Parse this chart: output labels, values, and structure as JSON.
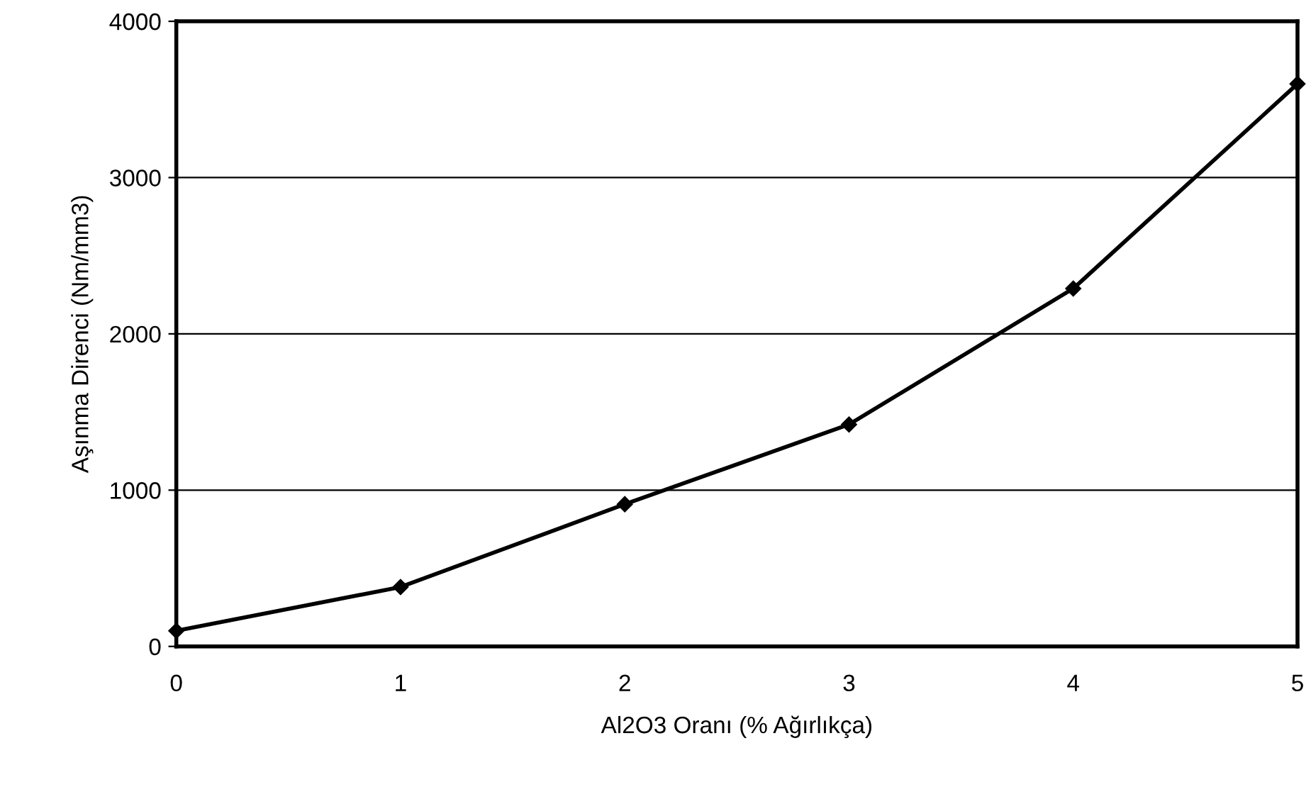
{
  "chart_data": {
    "type": "line",
    "xlabel": "Al2O3 Oranı (% Ağırlıkça)",
    "ylabel": "Aşınma Direnci (Nm/mm3)",
    "x": [
      0,
      1,
      2,
      3,
      4,
      5
    ],
    "series": [
      {
        "color": "#000000",
        "values": [
          100,
          380,
          910,
          1420,
          2290,
          3600
        ]
      }
    ],
    "xlim": [
      0,
      5
    ],
    "xticks": [
      0,
      1,
      2,
      3,
      4,
      5
    ],
    "ylim": [
      0,
      4000
    ],
    "yticks": [
      0,
      1000,
      2000,
      3000,
      4000
    ],
    "grid": "y",
    "marker": "diamond",
    "line_style": "solid"
  }
}
